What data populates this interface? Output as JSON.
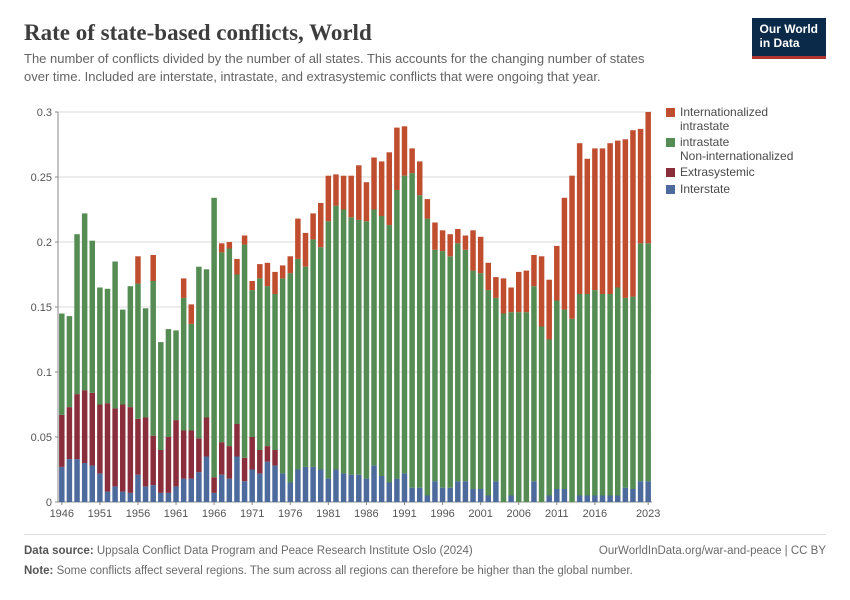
{
  "header": {
    "logo_line1": "Our World",
    "logo_line2": "in Data",
    "title": "Rate of state-based conflicts, World",
    "subtitle": "The number of conflicts divided by the number of all states. This accounts for the changing number of states over time. Included are interstate, intrastate, and extrasystemic conflicts that were ongoing that year."
  },
  "footer": {
    "source_label": "Data source:",
    "source_value": "Uppsala Conflict Data Program and Peace Research Institute Oslo (2024)",
    "attribution": "OurWorldInData.org/war-and-peace | CC BY",
    "note_label": "Note:",
    "note_value": "Some conflicts affect several regions. The sum across all regions can therefore be higher than the global number."
  },
  "chart": {
    "type": "stacked-bar",
    "background_color": "#ffffff",
    "grid_color": "#d9d9d9",
    "axis_color": "#888888",
    "label_color": "#555555",
    "label_fontsize": 11,
    "legend_fontsize": 12,
    "ylim": [
      0,
      0.3
    ],
    "yticks": [
      0,
      0.05,
      0.1,
      0.15,
      0.2,
      0.25,
      0.3
    ],
    "xticks": [
      1946,
      1951,
      1956,
      1961,
      1966,
      1971,
      1976,
      1981,
      1986,
      1991,
      1996,
      2001,
      2006,
      2011,
      2016,
      2023
    ],
    "years_start": 1946,
    "years_end": 2023,
    "series": [
      {
        "key": "interstate",
        "label": "Interstate",
        "color": "#4c6a9c"
      },
      {
        "key": "extrasys",
        "label": "Extrasystemic",
        "color": "#8a2e3c"
      },
      {
        "key": "nonintl",
        "label": "Non-internationalized intrastate",
        "color": "#548c54"
      },
      {
        "key": "intl",
        "label": "Internationalized intrastate",
        "color": "#bf4d2e"
      }
    ],
    "legend_order": [
      "intl",
      "nonintl",
      "extrasys",
      "interstate"
    ],
    "data": {
      "interstate": [
        0.027,
        0.033,
        0.033,
        0.03,
        0.028,
        0.022,
        0.008,
        0.012,
        0.008,
        0.007,
        0.021,
        0.012,
        0.013,
        0.007,
        0.007,
        0.012,
        0.018,
        0.018,
        0.023,
        0.035,
        0.007,
        0.021,
        0.018,
        0.035,
        0.016,
        0.025,
        0.022,
        0.031,
        0.028,
        0.022,
        0.015,
        0.025,
        0.027,
        0.027,
        0.025,
        0.018,
        0.025,
        0.022,
        0.021,
        0.021,
        0.018,
        0.028,
        0.02,
        0.015,
        0.018,
        0.022,
        0.011,
        0.011,
        0.005,
        0.016,
        0.011,
        0.011,
        0.016,
        0.016,
        0.01,
        0.01,
        0.005,
        0.016,
        0,
        0.005,
        0,
        0,
        0.016,
        0,
        0.005,
        0.01,
        0.01,
        0,
        0.005,
        0.005,
        0.005,
        0.005,
        0.005,
        0.005,
        0.011,
        0.01,
        0.016,
        0.016
      ],
      "extrasys": [
        0.04,
        0.04,
        0.05,
        0.056,
        0.056,
        0.053,
        0.068,
        0.06,
        0.067,
        0.066,
        0.043,
        0.053,
        0.038,
        0.033,
        0.043,
        0.051,
        0.037,
        0.037,
        0.026,
        0.03,
        0.012,
        0.025,
        0.025,
        0.025,
        0.018,
        0.025,
        0.018,
        0.012,
        0.012,
        0,
        0,
        0,
        0,
        0,
        0,
        0,
        0,
        0,
        0,
        0,
        0,
        0,
        0,
        0,
        0,
        0,
        0,
        0,
        0,
        0,
        0,
        0,
        0,
        0,
        0,
        0,
        0,
        0,
        0,
        0,
        0,
        0,
        0,
        0,
        0,
        0,
        0,
        0,
        0,
        0,
        0,
        0,
        0,
        0,
        0,
        0,
        0,
        0
      ],
      "nonintl": [
        0.078,
        0.07,
        0.123,
        0.136,
        0.117,
        0.09,
        0.088,
        0.113,
        0.073,
        0.093,
        0.104,
        0.084,
        0.119,
        0.083,
        0.083,
        0.069,
        0.102,
        0.082,
        0.132,
        0.114,
        0.215,
        0.146,
        0.152,
        0.115,
        0.164,
        0.113,
        0.132,
        0.123,
        0.12,
        0.15,
        0.161,
        0.162,
        0.154,
        0.175,
        0.171,
        0.198,
        0.203,
        0.203,
        0.198,
        0.196,
        0.198,
        0.197,
        0.2,
        0.198,
        0.222,
        0.229,
        0.242,
        0.225,
        0.213,
        0.178,
        0.182,
        0.178,
        0.183,
        0.178,
        0.168,
        0.166,
        0.158,
        0.141,
        0.145,
        0.141,
        0.146,
        0.146,
        0.15,
        0.135,
        0.12,
        0.145,
        0.138,
        0.141,
        0.155,
        0.155,
        0.158,
        0.155,
        0.155,
        0.16,
        0.146,
        0.148,
        0.183,
        0.183
      ],
      "intl": [
        0,
        0,
        0,
        0,
        0,
        0,
        0,
        0,
        0,
        0,
        0.021,
        0,
        0.02,
        0,
        0,
        0,
        0.015,
        0.015,
        0,
        0,
        0,
        0.007,
        0.005,
        0.012,
        0.007,
        0.007,
        0.011,
        0.018,
        0.017,
        0.01,
        0.013,
        0.031,
        0.026,
        0.02,
        0.034,
        0.035,
        0.024,
        0.026,
        0.032,
        0.042,
        0.03,
        0.04,
        0.042,
        0.056,
        0.048,
        0.038,
        0.019,
        0.026,
        0.015,
        0.021,
        0.016,
        0.017,
        0.011,
        0.011,
        0.031,
        0.028,
        0.021,
        0.016,
        0.027,
        0.019,
        0.031,
        0.032,
        0.024,
        0.054,
        0.046,
        0.042,
        0.086,
        0.11,
        0.116,
        0.104,
        0.109,
        0.112,
        0.116,
        0.113,
        0.122,
        0.128,
        0.088,
        0.101
      ]
    }
  }
}
